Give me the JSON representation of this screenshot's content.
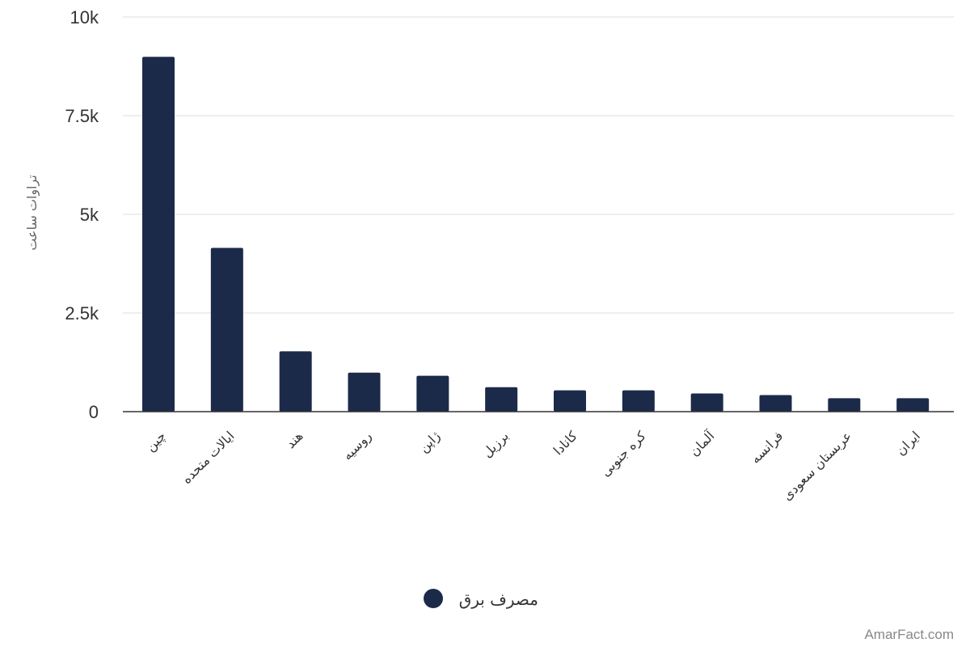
{
  "chart_data": {
    "type": "bar",
    "categories": [
      "چین",
      "ایالات متحده",
      "هند",
      "روسیه",
      "ژاپن",
      "برزیل",
      "کانادا",
      "کره جنوبی",
      "آلمان",
      "فرانسه",
      "عربستان سعودی",
      "ایران"
    ],
    "series": [
      {
        "name": "مصرف برق",
        "values": [
          8990,
          4150,
          1530,
          990,
          910,
          620,
          540,
          540,
          460,
          420,
          340,
          340
        ],
        "color": "#1c2a4a"
      }
    ],
    "title": "",
    "xlabel": "",
    "ylabel": "تراوات ساعت",
    "ylim": [
      0,
      10000
    ],
    "yticks": [
      {
        "value": 0,
        "label": "0"
      },
      {
        "value": 2500,
        "label": "2.5k"
      },
      {
        "value": 5000,
        "label": "5k"
      },
      {
        "value": 7500,
        "label": "7.5k"
      },
      {
        "value": 10000,
        "label": "10k"
      }
    ],
    "grid": true,
    "legend_position": "bottom-center"
  },
  "watermark": "AmarFact.com"
}
